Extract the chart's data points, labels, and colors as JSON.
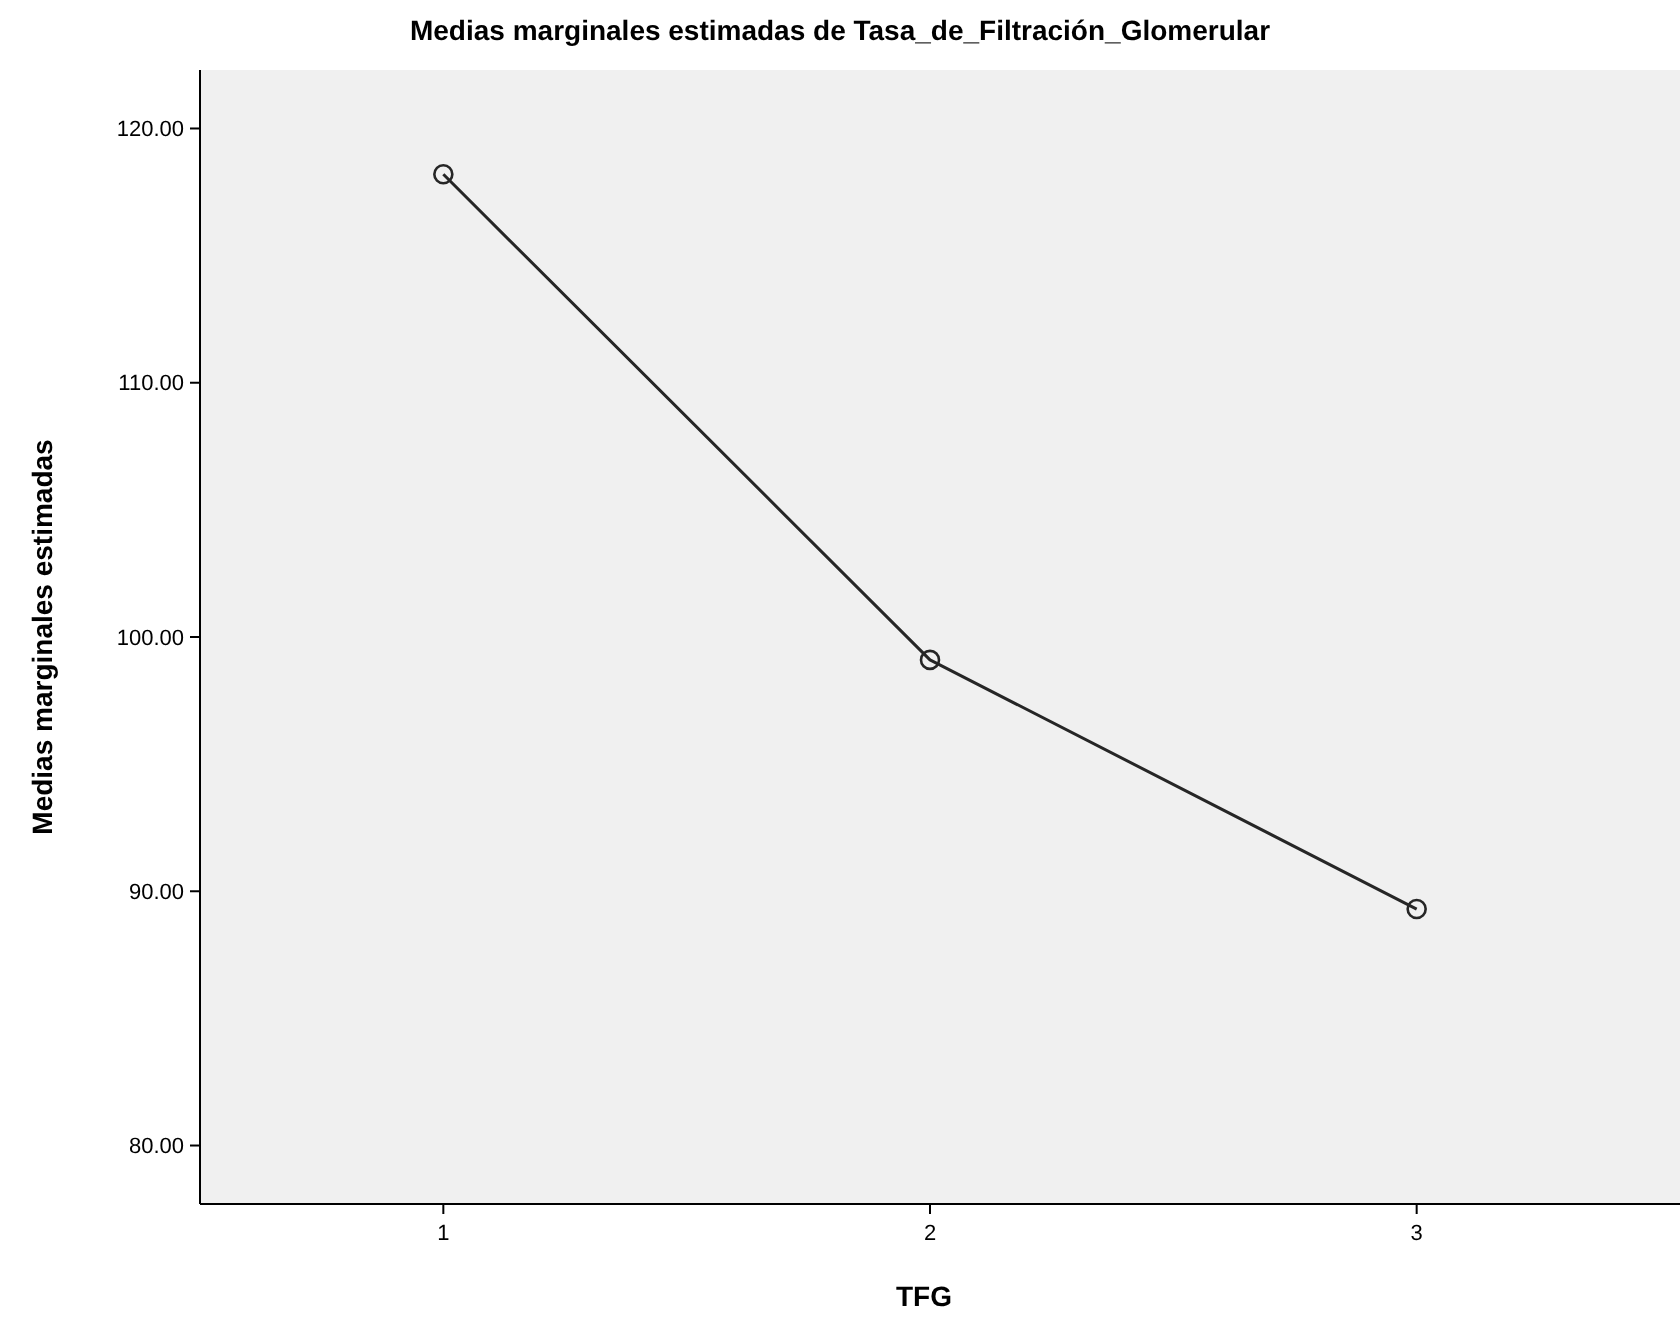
{
  "chart_data": {
    "type": "line",
    "title": "Medias marginales estimadas de Tasa_de_Filtración_Glomerular",
    "xlabel": "TFG",
    "ylabel": "Medias marginales estimadas",
    "categories": [
      "1",
      "2",
      "3"
    ],
    "series": [
      {
        "color": "#262626",
        "values": [
          118.2,
          99.1,
          89.3
        ]
      }
    ],
    "ylim": [
      77.7,
      122.3
    ],
    "yticks": [
      {
        "value": 80,
        "label": "80.00"
      },
      {
        "value": 90,
        "label": "90.00"
      },
      {
        "value": 100,
        "label": "100.00"
      },
      {
        "value": 110,
        "label": "110.00"
      },
      {
        "value": 120,
        "label": "120.00"
      }
    ],
    "marker": "circle",
    "grid": false
  }
}
